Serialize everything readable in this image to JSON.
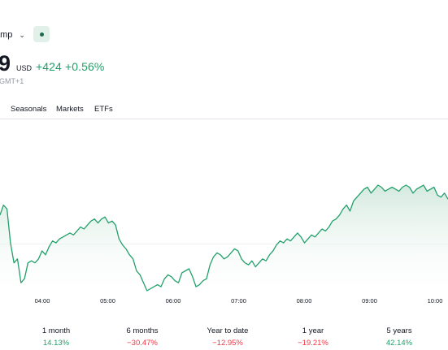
{
  "header": {
    "exchange_label": "amp",
    "price_last": "9",
    "currency": "USD",
    "change_abs": "+424",
    "change_pct": "+0.56%",
    "timezone": "GMT+1"
  },
  "tabs": [
    "Seasonals",
    "Markets",
    "ETFs"
  ],
  "chart_data": {
    "type": "area",
    "x_ticks": [
      "04:00",
      "05:00",
      "06:00",
      "07:00",
      "08:00",
      "09:00",
      "10:00"
    ],
    "series": [
      {
        "values": [
          58,
          63,
          61,
          44,
          34,
          36,
          24,
          26,
          34,
          35,
          34,
          36,
          40,
          38,
          42,
          45,
          44,
          46,
          47,
          48,
          49,
          48,
          50,
          52,
          51,
          53,
          55,
          56,
          54,
          56,
          57,
          54,
          55,
          53,
          46,
          43,
          41,
          38,
          36,
          30,
          28,
          24,
          20,
          21,
          22,
          23,
          22,
          26,
          28,
          27,
          25,
          24,
          29,
          30,
          31,
          27,
          22,
          23,
          25,
          26,
          33,
          37,
          39,
          38,
          36,
          37,
          39,
          41,
          40,
          36,
          34,
          33,
          35,
          32,
          34,
          36,
          35,
          38,
          40,
          43,
          45,
          44,
          46,
          45,
          47,
          49,
          47,
          44,
          46,
          48,
          47,
          49,
          51,
          50,
          52,
          55,
          56,
          58,
          61,
          63,
          60,
          65,
          67,
          69,
          71,
          72,
          69,
          71,
          73,
          72,
          70,
          71,
          72,
          71,
          70,
          72,
          73,
          72,
          69,
          71,
          72,
          73,
          70,
          71,
          72,
          68,
          67,
          69,
          66
        ]
      }
    ],
    "colors": {
      "line": "#22a06b",
      "fill_top": "#cfe7db"
    }
  },
  "performance": [
    {
      "label": "1 month",
      "value": "14.13%",
      "trend": "pos"
    },
    {
      "label": "6 months",
      "value": "−30.47%",
      "trend": "neg"
    },
    {
      "label": "Year to date",
      "value": "−12.95%",
      "trend": "neg"
    },
    {
      "label": "1 year",
      "value": "−19.21%",
      "trend": "neg"
    },
    {
      "label": "5 years",
      "value": "42.14%",
      "trend": "pos"
    }
  ]
}
